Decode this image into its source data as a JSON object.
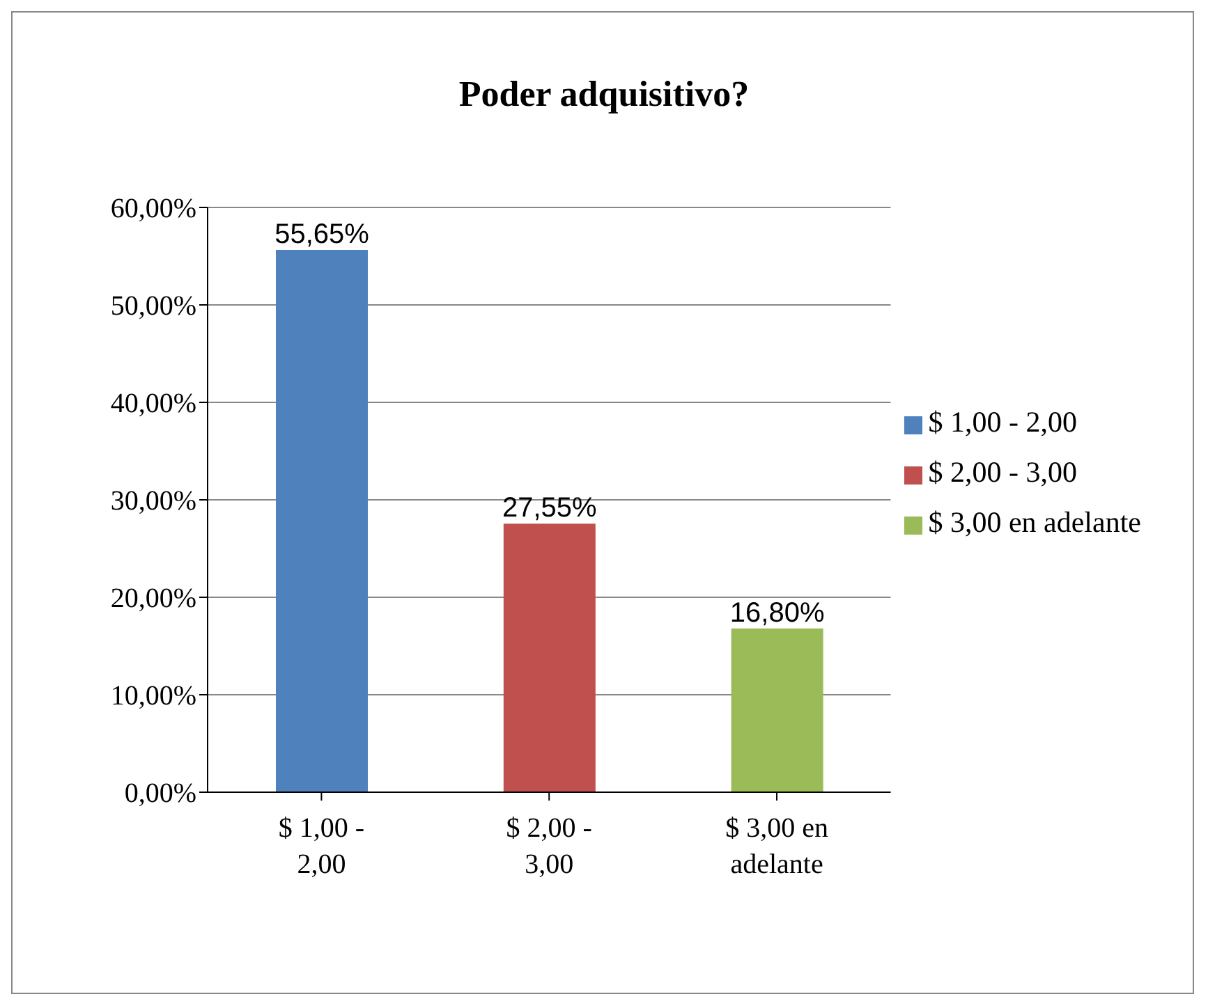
{
  "chart_data": {
    "type": "bar",
    "title": "Poder adquisitivo?",
    "categories": [
      "$ 1,00 - 2,00",
      "$ 2,00 - 3,00",
      "$ 3,00 en adelante"
    ],
    "stacked": true,
    "series": [
      {
        "name": "$ 1,00 - 2,00",
        "color": "#4f81bd",
        "values": [
          55.65,
          null,
          null
        ],
        "value_labels": [
          "55,65%",
          null,
          null
        ]
      },
      {
        "name": "$ 2,00 - 3,00",
        "color": "#c0504d",
        "values": [
          null,
          27.55,
          null
        ],
        "value_labels": [
          null,
          "27,55%",
          null
        ]
      },
      {
        "name": "$ 3,00 en adelante",
        "color": "#9bbb59",
        "values": [
          null,
          null,
          16.8
        ],
        "value_labels": [
          null,
          null,
          "16,80%"
        ]
      }
    ],
    "ylim": [
      0,
      60
    ],
    "yticks": [
      {
        "value": 0,
        "label": "0,00%"
      },
      {
        "value": 10,
        "label": "10,00%"
      },
      {
        "value": 20,
        "label": "20,00%"
      },
      {
        "value": 30,
        "label": "30,00%"
      },
      {
        "value": 40,
        "label": "40,00%"
      },
      {
        "value": 50,
        "label": "50,00%"
      },
      {
        "value": 60,
        "label": "60,00%"
      }
    ],
    "grid": "y",
    "legend": "right"
  }
}
